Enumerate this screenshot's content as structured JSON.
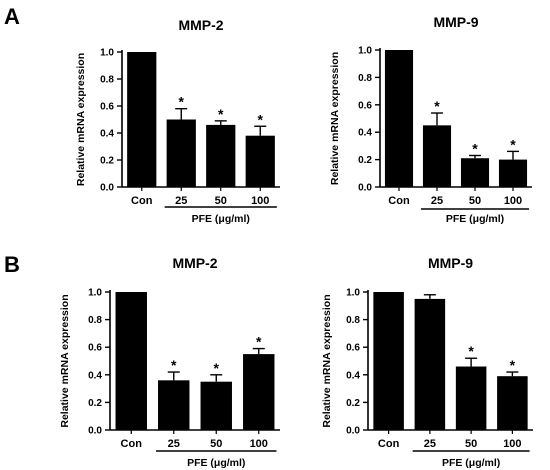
{
  "panels": {
    "a": {
      "letter": "A"
    },
    "b": {
      "letter": "B"
    }
  },
  "chart_data": [
    {
      "panel": "A",
      "type": "bar",
      "title": "MMP-2",
      "ylabel": "Relative mRNA expression",
      "categories": [
        "Con",
        "25",
        "50",
        "100"
      ],
      "values": [
        1.0,
        0.5,
        0.46,
        0.38
      ],
      "errors": [
        0.0,
        0.08,
        0.03,
        0.07
      ],
      "significant": [
        false,
        true,
        true,
        true
      ],
      "significance_marker": "*",
      "group_label": "PFE (μg/ml)",
      "group_span": [
        "25",
        "100"
      ],
      "ylim": [
        0,
        1.0
      ],
      "yticks": [
        "0.0",
        "0.2",
        "0.4",
        "0.6",
        "0.8",
        "1.0"
      ],
      "bar_color": "#000000"
    },
    {
      "panel": "A",
      "type": "bar",
      "title": "MMP-9",
      "ylabel": "Relative mRNA expression",
      "categories": [
        "Con",
        "25",
        "50",
        "100"
      ],
      "values": [
        1.0,
        0.45,
        0.21,
        0.2
      ],
      "errors": [
        0.0,
        0.09,
        0.02,
        0.06
      ],
      "significant": [
        false,
        true,
        true,
        true
      ],
      "significance_marker": "*",
      "group_label": "PFE (μg/ml)",
      "group_span": [
        "25",
        "100"
      ],
      "ylim": [
        0,
        1.0
      ],
      "yticks": [
        "0.0",
        "0.2",
        "0.4",
        "0.6",
        "0.8",
        "1.0"
      ],
      "bar_color": "#000000"
    },
    {
      "panel": "B",
      "type": "bar",
      "title": "MMP-2",
      "ylabel": "Relative mRNA expression",
      "categories": [
        "Con",
        "25",
        "50",
        "100"
      ],
      "values": [
        1.0,
        0.36,
        0.35,
        0.55
      ],
      "errors": [
        0.0,
        0.06,
        0.05,
        0.04
      ],
      "significant": [
        false,
        true,
        true,
        true
      ],
      "significance_marker": "*",
      "group_label": "PFE (μg/ml)",
      "group_span": [
        "25",
        "100"
      ],
      "ylim": [
        0,
        1.0
      ],
      "yticks": [
        "0.0",
        "0.2",
        "0.4",
        "0.6",
        "0.8",
        "1.0"
      ],
      "bar_color": "#000000"
    },
    {
      "panel": "B",
      "type": "bar",
      "title": "MMP-9",
      "ylabel": "Relative mRNA expression",
      "categories": [
        "Con",
        "25",
        "50",
        "100"
      ],
      "values": [
        1.0,
        0.95,
        0.46,
        0.39
      ],
      "errors": [
        0.0,
        0.03,
        0.06,
        0.03
      ],
      "significant": [
        false,
        false,
        true,
        true
      ],
      "significance_marker": "*",
      "group_label": "PFE (μg/ml)",
      "group_span": [
        "25",
        "100"
      ],
      "ylim": [
        0,
        1.0
      ],
      "yticks": [
        "0.0",
        "0.2",
        "0.4",
        "0.6",
        "0.8",
        "1.0"
      ],
      "bar_color": "#000000"
    }
  ]
}
